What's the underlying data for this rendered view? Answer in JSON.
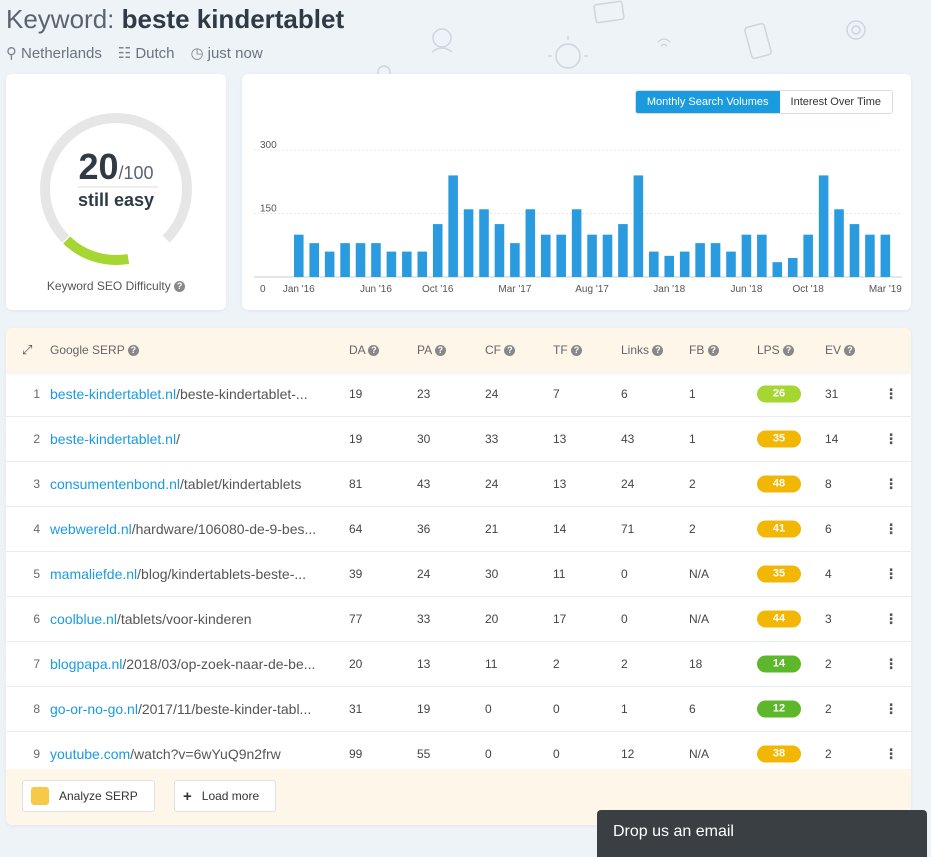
{
  "header": {
    "title_prefix": "Keyword: ",
    "keyword": "beste kindertablet",
    "location": "Netherlands",
    "language": "Dutch",
    "time": "just now"
  },
  "difficulty": {
    "score": "20",
    "max": "/100",
    "label": "still easy",
    "caption": "Keyword SEO Difficulty",
    "score_fraction": 0.2,
    "color": "#a6d631"
  },
  "chart_toggle": {
    "active": "Monthly Search Volumes",
    "inactive": "Interest Over Time"
  },
  "chart_data": {
    "type": "bar",
    "ylim": [
      0,
      340
    ],
    "yticks": [
      "0",
      "150",
      "300"
    ],
    "xtick_labels": [
      "Jan '16",
      "Jun '16",
      "Oct '16",
      "Mar '17",
      "Aug '17",
      "Jan '18",
      "Jun '18",
      "Oct '18",
      "Mar '19"
    ],
    "xtick_index": [
      0,
      5,
      9,
      14,
      19,
      24,
      29,
      33,
      38
    ],
    "values": [
      100,
      80,
      60,
      80,
      80,
      80,
      60,
      60,
      60,
      125,
      240,
      160,
      160,
      125,
      80,
      160,
      100,
      100,
      160,
      100,
      100,
      125,
      240,
      60,
      50,
      60,
      80,
      80,
      60,
      100,
      100,
      35,
      45,
      100,
      240,
      160,
      125,
      100,
      100
    ],
    "color": "#2b9be0"
  },
  "table": {
    "headers": [
      "Google SERP",
      "DA",
      "PA",
      "CF",
      "TF",
      "Links",
      "FB",
      "LPS",
      "EV"
    ],
    "rows": [
      {
        "idx": "1",
        "domain": "beste-kindertablet.nl",
        "path": "/beste-kindertablet-...",
        "da": "19",
        "pa": "23",
        "cf": "24",
        "tf": "7",
        "links": "6",
        "fb": "1",
        "lps": "26",
        "lps_color": "#a6d631",
        "ev": "31"
      },
      {
        "idx": "2",
        "domain": "beste-kindertablet.nl",
        "path": "/",
        "da": "19",
        "pa": "30",
        "cf": "33",
        "tf": "13",
        "links": "43",
        "fb": "1",
        "lps": "35",
        "lps_color": "#f2b705",
        "ev": "14"
      },
      {
        "idx": "3",
        "domain": "consumentenbond.nl",
        "path": "/tablet/kindertablets",
        "da": "81",
        "pa": "43",
        "cf": "24",
        "tf": "13",
        "links": "24",
        "fb": "2",
        "lps": "48",
        "lps_color": "#f2b705",
        "ev": "8"
      },
      {
        "idx": "4",
        "domain": "webwereld.nl",
        "path": "/hardware/106080-de-9-bes...",
        "da": "64",
        "pa": "36",
        "cf": "21",
        "tf": "14",
        "links": "71",
        "fb": "2",
        "lps": "41",
        "lps_color": "#f2b705",
        "ev": "6"
      },
      {
        "idx": "5",
        "domain": "mamaliefde.nl",
        "path": "/blog/kindertablets-beste-...",
        "da": "39",
        "pa": "24",
        "cf": "30",
        "tf": "11",
        "links": "0",
        "fb": "N/A",
        "lps": "35",
        "lps_color": "#f2b705",
        "ev": "4"
      },
      {
        "idx": "6",
        "domain": "coolblue.nl",
        "path": "/tablets/voor-kinderen",
        "da": "77",
        "pa": "33",
        "cf": "20",
        "tf": "17",
        "links": "0",
        "fb": "N/A",
        "lps": "44",
        "lps_color": "#f2b705",
        "ev": "3"
      },
      {
        "idx": "7",
        "domain": "blogpapa.nl",
        "path": "/2018/03/op-zoek-naar-de-be...",
        "da": "20",
        "pa": "13",
        "cf": "11",
        "tf": "2",
        "links": "2",
        "fb": "18",
        "lps": "14",
        "lps_color": "#5cb82a",
        "ev": "2"
      },
      {
        "idx": "8",
        "domain": "go-or-no-go.nl",
        "path": "/2017/11/beste-kinder-tabl...",
        "da": "31",
        "pa": "19",
        "cf": "0",
        "tf": "0",
        "links": "1",
        "fb": "6",
        "lps": "12",
        "lps_color": "#5cb82a",
        "ev": "2"
      },
      {
        "idx": "9",
        "domain": "youtube.com",
        "path": "/watch?v=6wYuQ9n2frw",
        "da": "99",
        "pa": "55",
        "cf": "0",
        "tf": "0",
        "links": "12",
        "fb": "N/A",
        "lps": "38",
        "lps_color": "#f2b705",
        "ev": "2"
      }
    ]
  },
  "footer": {
    "analyze_label": "Analyze SERP",
    "load_more_label": "Load more"
  },
  "chat": {
    "label": "Drop us an email"
  }
}
